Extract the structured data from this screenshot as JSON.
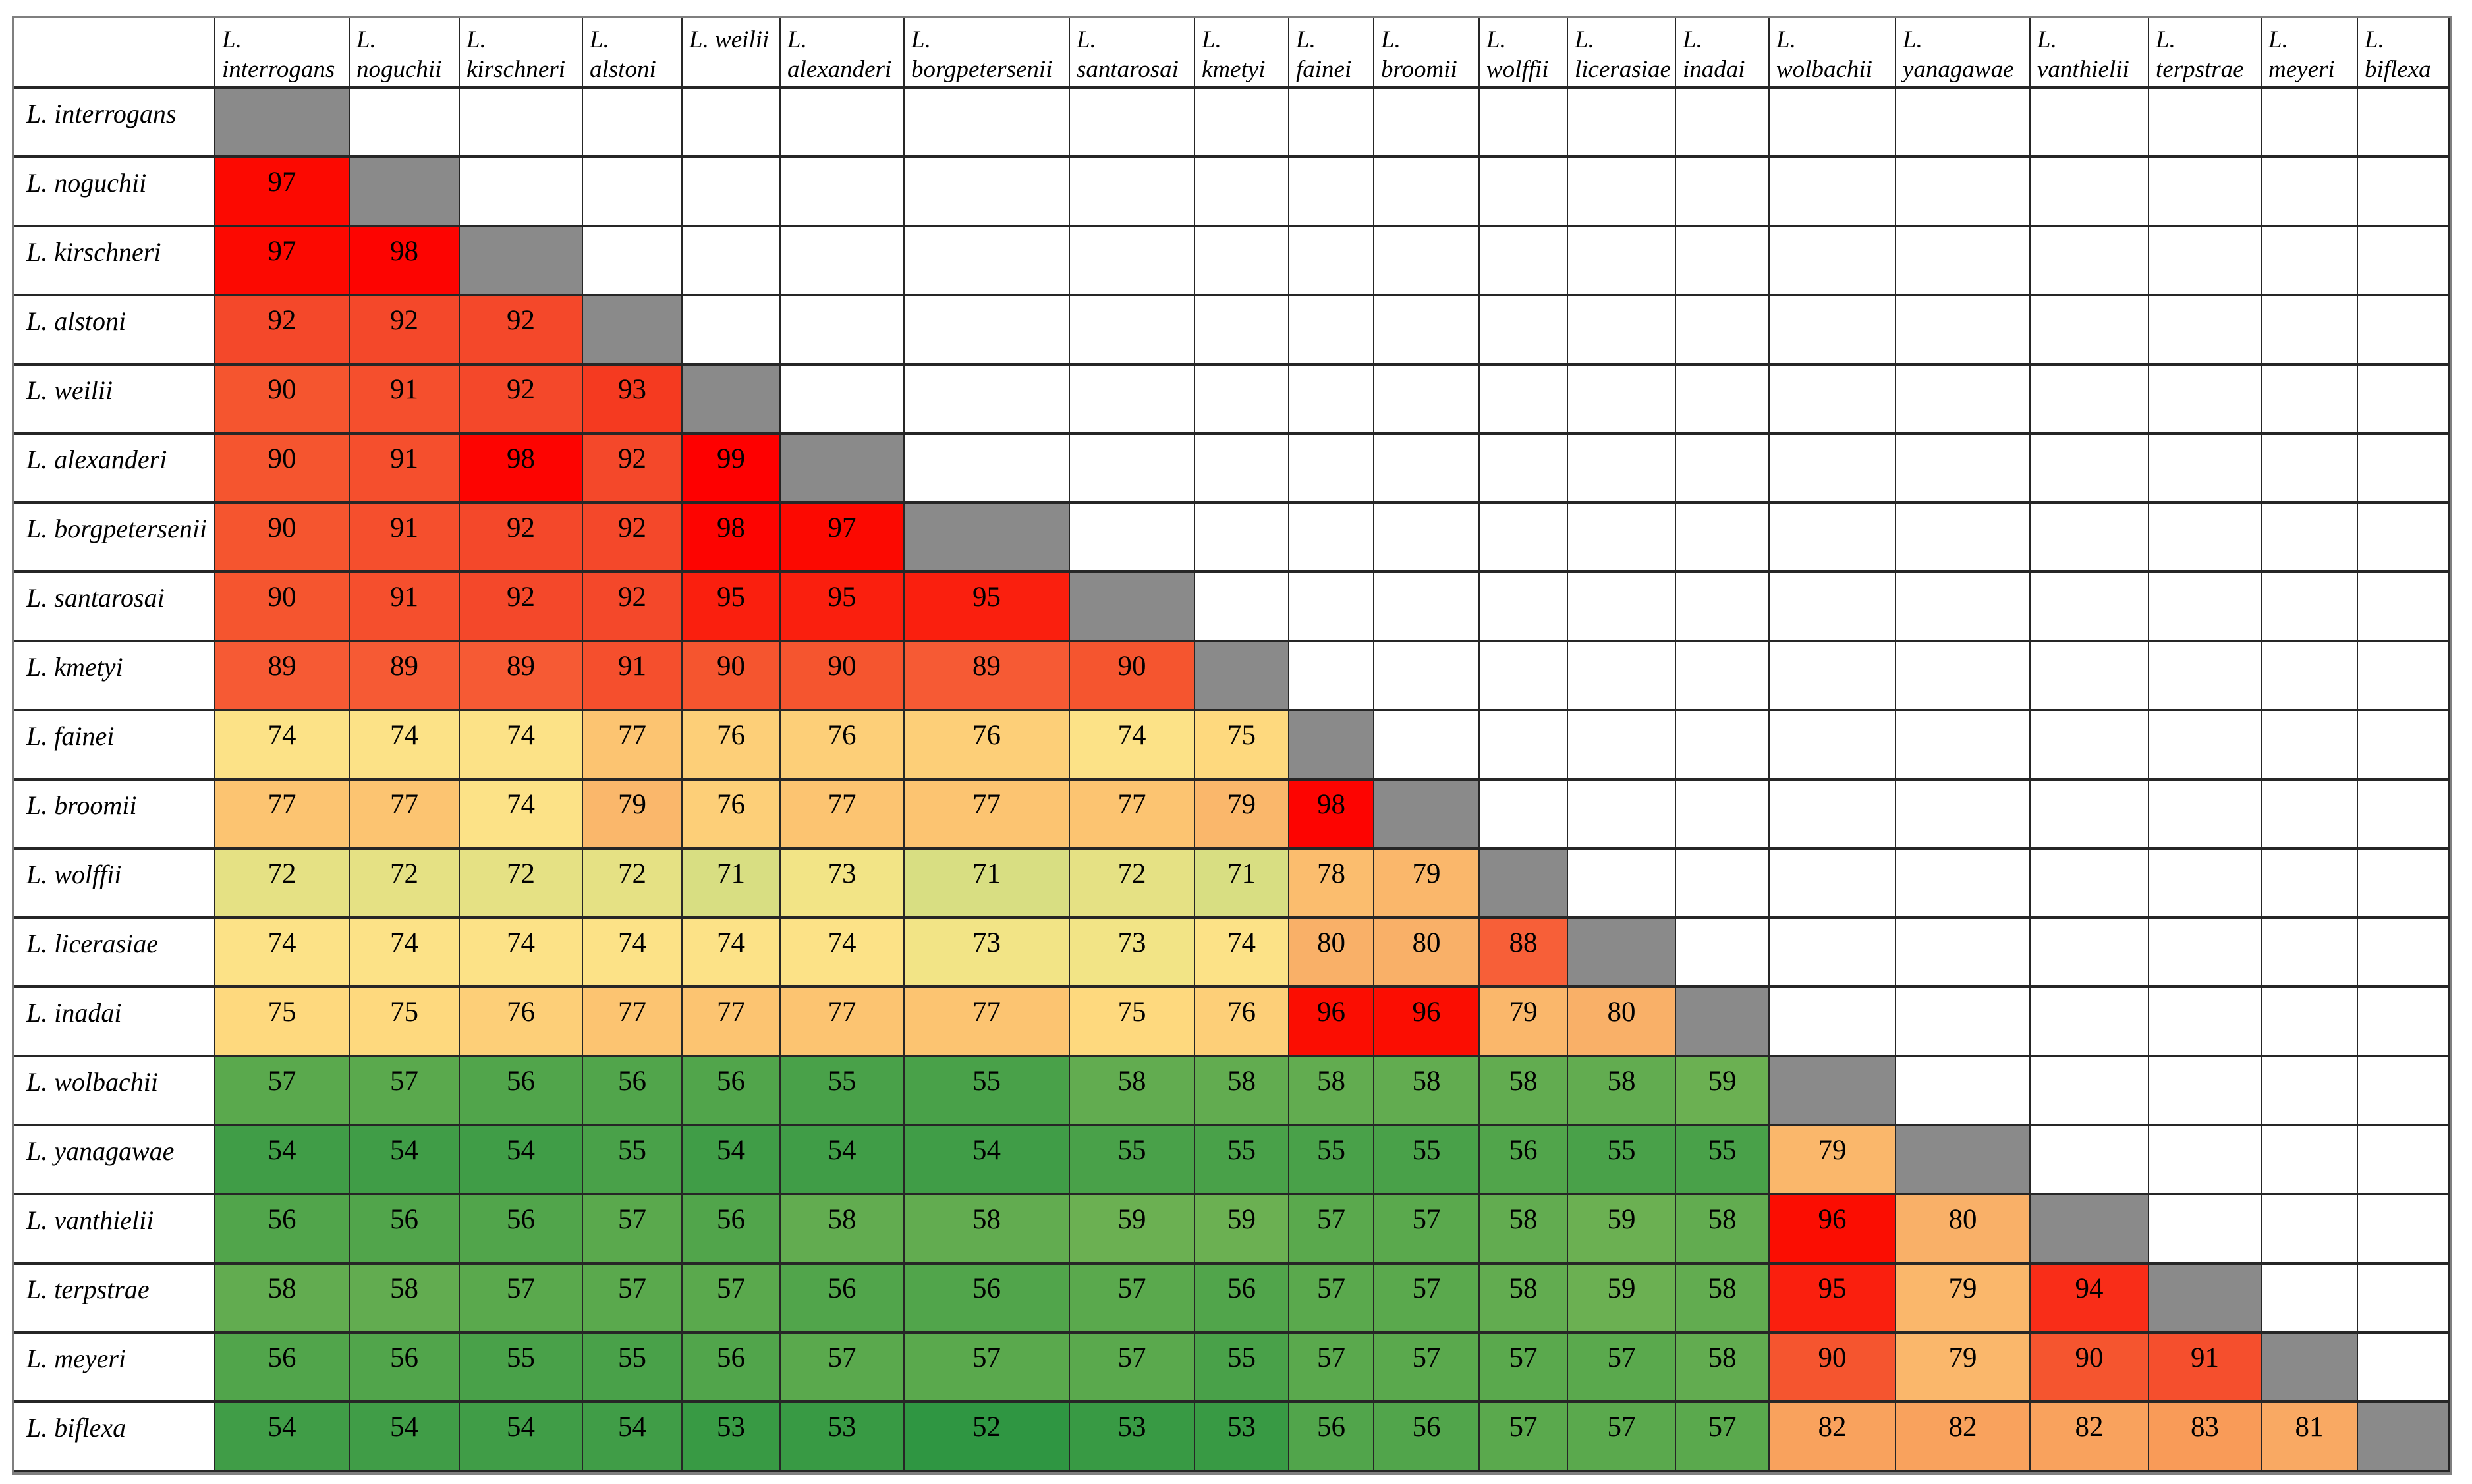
{
  "chart_data": {
    "type": "heatmap",
    "title": "",
    "description_note": "Lower-triangular species similarity matrix; diagonal self-comparison cells are gray, upper triangle empty",
    "labels": [
      "L. interrogans",
      "L. noguchii",
      "L. kirschneri",
      "L. alstoni",
      "L. weilii",
      "L. alexanderi",
      "L. borgpetersenii",
      "L. santarosai",
      "L. kmetyi",
      "L. fainei",
      "L. broomii",
      "L. wolffii",
      "L. licerasiae",
      "L. inadai",
      "L. wolbachii",
      "L. yanagawae",
      "L. vanthielii",
      "L. terpstrae",
      "L. meyeri",
      "L. biflexa"
    ],
    "matrix_lower_triangle": [
      [],
      [
        97
      ],
      [
        97,
        98
      ],
      [
        92,
        92,
        92
      ],
      [
        90,
        91,
        92,
        93
      ],
      [
        90,
        91,
        98,
        92,
        99
      ],
      [
        90,
        91,
        92,
        92,
        98,
        97
      ],
      [
        90,
        91,
        92,
        92,
        95,
        95,
        95
      ],
      [
        89,
        89,
        89,
        91,
        90,
        90,
        89,
        90
      ],
      [
        74,
        74,
        74,
        77,
        76,
        76,
        76,
        74,
        75
      ],
      [
        77,
        77,
        74,
        79,
        76,
        77,
        77,
        77,
        79,
        98
      ],
      [
        72,
        72,
        72,
        72,
        71,
        73,
        71,
        72,
        71,
        78,
        79
      ],
      [
        74,
        74,
        74,
        74,
        74,
        74,
        73,
        73,
        74,
        80,
        80,
        88
      ],
      [
        75,
        75,
        76,
        77,
        77,
        77,
        77,
        75,
        76,
        96,
        96,
        79,
        80
      ],
      [
        57,
        57,
        56,
        56,
        56,
        55,
        55,
        58,
        58,
        58,
        58,
        58,
        58,
        59
      ],
      [
        54,
        54,
        54,
        55,
        54,
        54,
        54,
        55,
        55,
        55,
        55,
        56,
        55,
        55,
        79
      ],
      [
        56,
        56,
        56,
        57,
        56,
        58,
        58,
        59,
        59,
        57,
        57,
        58,
        59,
        58,
        96,
        80
      ],
      [
        58,
        58,
        57,
        57,
        57,
        56,
        56,
        57,
        56,
        57,
        57,
        58,
        59,
        58,
        95,
        79,
        94
      ],
      [
        56,
        56,
        55,
        55,
        56,
        57,
        57,
        57,
        55,
        57,
        57,
        57,
        57,
        58,
        90,
        79,
        90,
        91
      ],
      [
        54,
        54,
        54,
        54,
        53,
        53,
        52,
        53,
        53,
        56,
        56,
        57,
        57,
        57,
        82,
        82,
        82,
        83,
        81
      ]
    ],
    "value_range": [
      52,
      99
    ],
    "colors": {
      "diagonal": "#8A8A8A",
      "empty": "#FFFFFF",
      "grid_line": "#262626",
      "outer_border": "#7F7F7F",
      "text": "#000000",
      "scale_stops": [
        [
          52,
          "#2F9642"
        ],
        [
          59,
          "#6BB052"
        ],
        [
          65,
          "#A5CA6A"
        ],
        [
          71,
          "#D8DE82"
        ],
        [
          73,
          "#F2E486"
        ],
        [
          74,
          "#FCE287"
        ],
        [
          75,
          "#FED97E"
        ],
        [
          77,
          "#FCC471"
        ],
        [
          80,
          "#F9B068"
        ],
        [
          83,
          "#F99B58"
        ],
        [
          85,
          "#F8824A"
        ],
        [
          88,
          "#F75F38"
        ],
        [
          90,
          "#F5552F"
        ],
        [
          92,
          "#F4482A"
        ],
        [
          93,
          "#F53A20"
        ],
        [
          94,
          "#F92D18"
        ],
        [
          95,
          "#FA1F0E"
        ],
        [
          96,
          "#FB0D02"
        ],
        [
          99,
          "#FE0000"
        ]
      ]
    }
  }
}
